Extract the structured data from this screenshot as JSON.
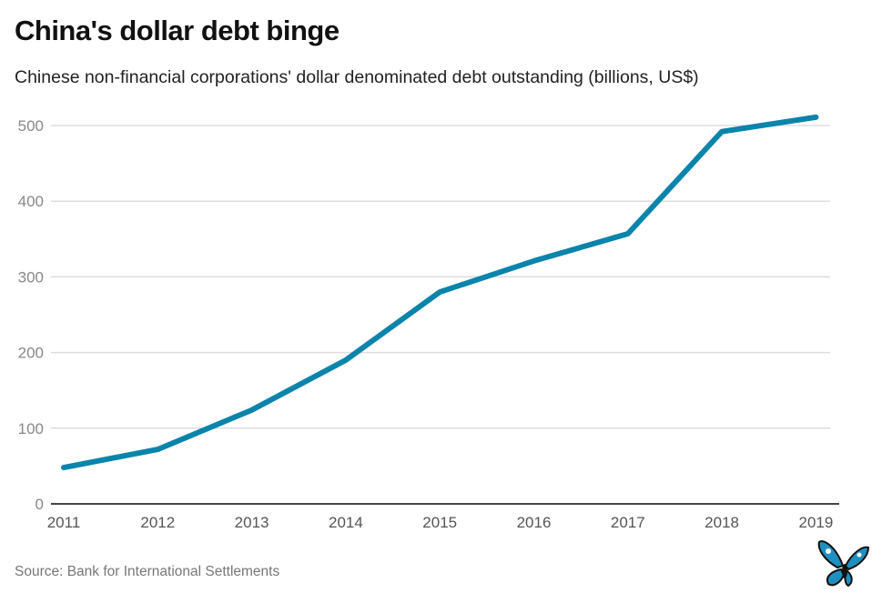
{
  "chart_data": {
    "type": "line",
    "title": "China's dollar debt binge",
    "subtitle": "Chinese non-financial corporations' dollar denominated debt outstanding (billions, US$)",
    "source": "Source: Bank for International Settlements",
    "xlabel": "",
    "ylabel": "",
    "categories": [
      "2011",
      "2012",
      "2013",
      "2014",
      "2015",
      "2016",
      "2017",
      "2018",
      "2019"
    ],
    "series": [
      {
        "name": "Dollar debt outstanding",
        "values": [
          48,
          72,
          124,
          190,
          280,
          321,
          357,
          492,
          511
        ],
        "color": "#0a84aa"
      }
    ],
    "yticks": [
      "0",
      "100",
      "200",
      "300",
      "400",
      "500"
    ],
    "ylim": [
      0,
      500
    ],
    "grid": true,
    "legend": "none"
  }
}
